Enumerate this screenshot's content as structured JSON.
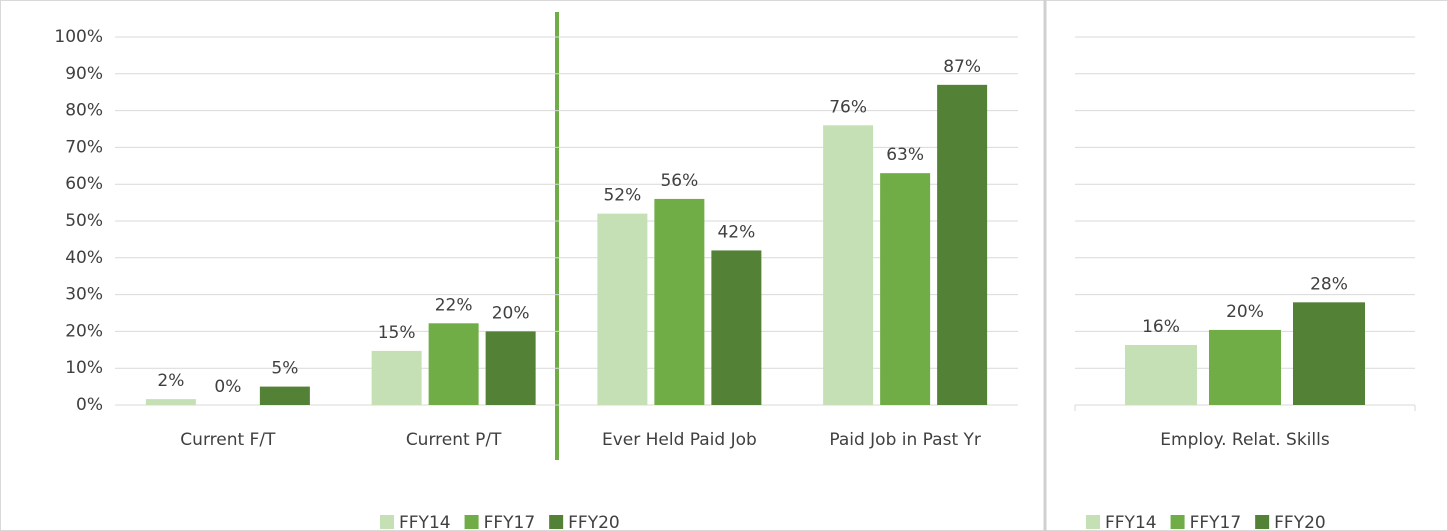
{
  "chart_data": [
    {
      "type": "bar",
      "categories": [
        "Current F/T",
        "Current P/T",
        "Ever Held Paid Job",
        "Paid Job in Past Yr"
      ],
      "series": [
        {
          "name": "FFY14",
          "color": "#c5e0b4",
          "values": [
            1.6,
            14.7,
            52,
            76
          ],
          "value_labels": [
            "2%",
            "15%",
            "52%",
            "76%"
          ]
        },
        {
          "name": "FFY17",
          "color": "#70ad47",
          "values": [
            0,
            22.2,
            56,
            63
          ],
          "value_labels": [
            "0%",
            "22%",
            "56%",
            "63%"
          ]
        },
        {
          "name": "FFY20",
          "color": "#538135",
          "values": [
            5,
            20,
            42,
            87
          ],
          "value_labels": [
            "5%",
            "20%",
            "42%",
            "87%"
          ]
        }
      ],
      "ylim": [
        0,
        100
      ],
      "yticks": [
        {
          "value": 0,
          "label": "0%"
        },
        {
          "value": 10,
          "label": "10%"
        },
        {
          "value": 20,
          "label": "20%"
        },
        {
          "value": 30,
          "label": "30%"
        },
        {
          "value": 40,
          "label": "40%"
        },
        {
          "value": 50,
          "label": "50%"
        },
        {
          "value": 60,
          "label": "60%"
        },
        {
          "value": 70,
          "label": "70%"
        },
        {
          "value": 80,
          "label": "80%"
        },
        {
          "value": 90,
          "label": "90%"
        },
        {
          "value": 100,
          "label": "100%"
        }
      ],
      "grid": true,
      "legend": "bottom"
    },
    {
      "type": "bar",
      "categories": [
        "Employ. Relat. Skills"
      ],
      "series": [
        {
          "name": "FFY14",
          "color": "#c5e0b4",
          "values": [
            16.3
          ],
          "value_labels": [
            "16%"
          ]
        },
        {
          "name": "FFY17",
          "color": "#70ad47",
          "values": [
            20.4
          ],
          "value_labels": [
            "20%"
          ]
        },
        {
          "name": "FFY20",
          "color": "#538135",
          "values": [
            27.9
          ],
          "value_labels": [
            "28%"
          ]
        }
      ],
      "ylim": [
        0,
        100
      ],
      "yticks": [
        0,
        10,
        20,
        30,
        40,
        50,
        60,
        70,
        80,
        90,
        100
      ],
      "grid": true,
      "legend": "bottom"
    }
  ]
}
